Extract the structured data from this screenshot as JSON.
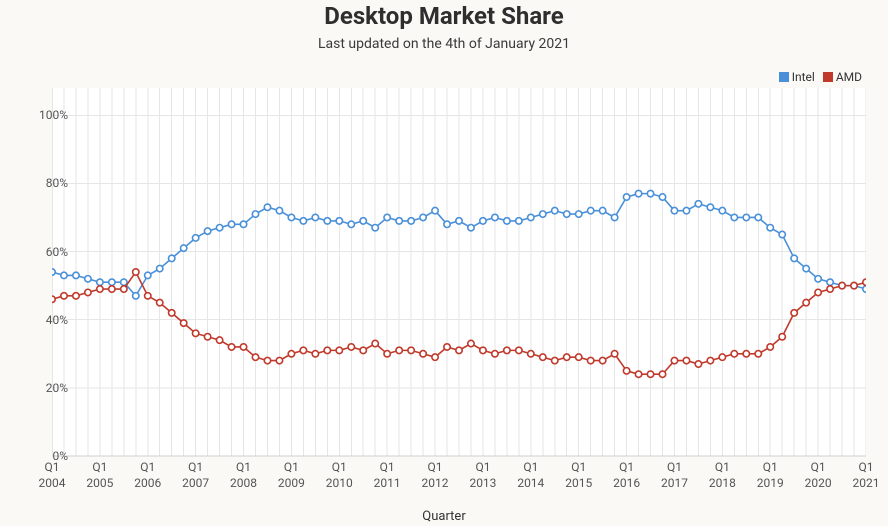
{
  "title": "Desktop Market Share",
  "subtitle": "Last updated on the 4th of January 2021",
  "xaxis_label": "Quarter",
  "chart": {
    "type": "line",
    "background_color": "#fbf9f5",
    "plot_background_color": "#ffffff",
    "grid_color": "#e6e6e6",
    "axis_line_color": "#cfcfcf",
    "title_fontsize": 24,
    "subtitle_fontsize": 14,
    "label_fontsize": 12,
    "tick_fontsize": 12,
    "marker_size": 3.2,
    "marker_stroke_width": 1.6,
    "line_width": 1.6,
    "ylim": [
      0,
      108
    ],
    "yticks": [
      0,
      20,
      40,
      60,
      80,
      100
    ],
    "ytick_labels": [
      "0%",
      "20%",
      "40%",
      "60%",
      "80%",
      "100%"
    ],
    "x_start_year": 2004,
    "x_end_partial": "2021-Q1",
    "x_year_ticks": [
      2004,
      2005,
      2006,
      2007,
      2008,
      2009,
      2010,
      2011,
      2012,
      2013,
      2014,
      2015,
      2016,
      2017,
      2018,
      2019,
      2020,
      2021
    ],
    "x_tick_label_top": "Q1",
    "series": [
      {
        "name": "Intel",
        "color": "#4a90d9",
        "values": [
          54,
          53,
          53,
          52,
          51,
          51,
          51,
          47,
          53,
          55,
          58,
          61,
          64,
          66,
          67,
          68,
          68,
          71,
          73,
          72,
          70,
          69,
          70,
          69,
          69,
          68,
          69,
          67,
          70,
          69,
          69,
          70,
          72,
          68,
          69,
          67,
          69,
          70,
          69,
          69,
          70,
          71,
          72,
          71,
          71,
          72,
          72,
          70,
          76,
          77,
          77,
          76,
          72,
          72,
          74,
          73,
          72,
          70,
          70,
          70,
          67,
          65,
          58,
          55,
          52,
          51,
          50,
          50,
          49
        ]
      },
      {
        "name": "AMD",
        "color": "#c0392b",
        "values": [
          46,
          47,
          47,
          48,
          49,
          49,
          49,
          54,
          47,
          45,
          42,
          39,
          36,
          35,
          34,
          32,
          32,
          29,
          28,
          28,
          30,
          31,
          30,
          31,
          31,
          32,
          31,
          33,
          30,
          31,
          31,
          30,
          29,
          32,
          31,
          33,
          31,
          30,
          31,
          31,
          30,
          29,
          28,
          29,
          29,
          28,
          28,
          30,
          25,
          24,
          24,
          24,
          28,
          28,
          27,
          28,
          29,
          30,
          30,
          30,
          32,
          35,
          42,
          45,
          48,
          49,
          50,
          50,
          51
        ]
      }
    ],
    "legend": {
      "position": "top-right",
      "items": [
        {
          "label": "Intel",
          "color": "#4a90d9"
        },
        {
          "label": "AMD",
          "color": "#c0392b"
        }
      ]
    }
  }
}
